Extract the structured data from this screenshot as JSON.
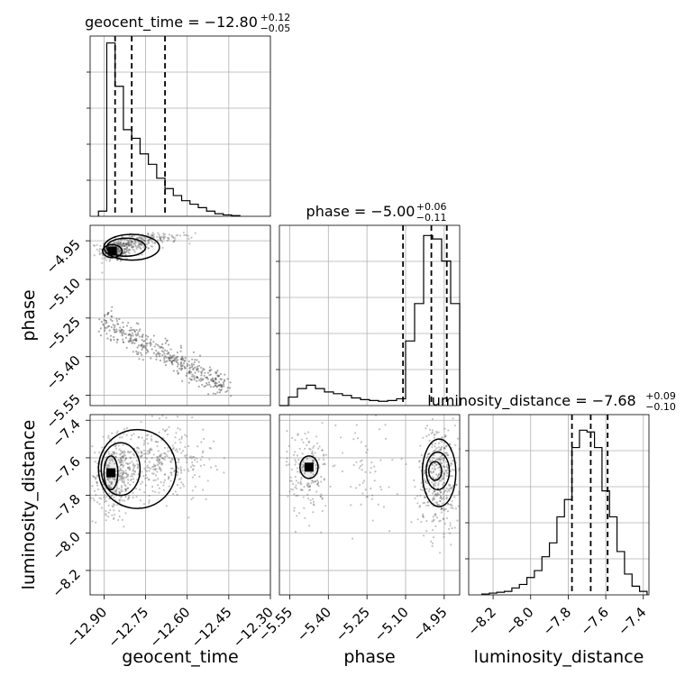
{
  "chart_data": {
    "type": "corner",
    "parameters": [
      "geocent_time",
      "phase",
      "luminosity_distance"
    ],
    "grid": true,
    "diagonal": [
      {
        "parameter": "geocent_time",
        "title": "geocent_time = −12.80",
        "err_plus": "+0.12",
        "err_minus": "−0.05",
        "xlim": [
          -12.95,
          -12.3
        ],
        "quantiles": [
          -12.86,
          -12.8,
          -12.68
        ],
        "bin_width": 0.03,
        "bin_starts": [
          -12.92,
          -12.89,
          -12.86,
          -12.83,
          -12.8,
          -12.77,
          -12.74,
          -12.71,
          -12.68,
          -12.65,
          -12.62,
          -12.59,
          -12.56,
          -12.53,
          -12.5,
          -12.47,
          -12.44
        ],
        "counts": [
          0.03,
          1.0,
          0.75,
          0.5,
          0.45,
          0.36,
          0.3,
          0.22,
          0.16,
          0.12,
          0.09,
          0.07,
          0.05,
          0.03,
          0.015,
          0.008,
          0.004
        ],
        "ylim": [
          0,
          1.04
        ]
      },
      {
        "parameter": "phase",
        "title": "phase = −5.00",
        "err_plus": "+0.06",
        "err_minus": "−0.11",
        "xlim": [
          -5.59,
          -4.89
        ],
        "quantiles": [
          -5.11,
          -5.0,
          -4.94
        ],
        "bin_width": 0.035,
        "bin_starts": [
          -5.59,
          -5.555,
          -5.52,
          -5.485,
          -5.45,
          -5.415,
          -5.38,
          -5.345,
          -5.31,
          -5.275,
          -5.24,
          -5.205,
          -5.17,
          -5.135,
          -5.1,
          -5.065,
          -5.03,
          -4.995,
          -4.96,
          -4.925
        ],
        "counts": [
          0.0,
          0.05,
          0.1,
          0.12,
          0.1,
          0.08,
          0.07,
          0.06,
          0.045,
          0.035,
          0.03,
          0.025,
          0.03,
          0.04,
          0.38,
          0.6,
          1.0,
          0.98,
          0.85,
          0.6
        ],
        "ylim": [
          0,
          1.06
        ]
      },
      {
        "parameter": "luminosity_distance",
        "title": "luminosity_distance = −7.68",
        "err_plus": "+0.09",
        "err_minus": "−0.10",
        "xlim": [
          -8.33,
          -7.37
        ],
        "quantiles": [
          -7.78,
          -7.68,
          -7.59
        ],
        "bin_width": 0.04,
        "bin_starts": [
          -8.26,
          -8.22,
          -8.18,
          -8.14,
          -8.1,
          -8.06,
          -8.02,
          -7.98,
          -7.94,
          -7.9,
          -7.86,
          -7.82,
          -7.78,
          -7.74,
          -7.7,
          -7.66,
          -7.62,
          -7.58,
          -7.54,
          -7.5,
          -7.46,
          -7.42
        ],
        "counts": [
          0.005,
          0.01,
          0.015,
          0.02,
          0.04,
          0.06,
          0.1,
          0.14,
          0.22,
          0.3,
          0.45,
          0.55,
          0.85,
          0.95,
          0.94,
          0.85,
          0.6,
          0.45,
          0.25,
          0.12,
          0.05,
          0.02
        ],
        "ylim": [
          0,
          1.04
        ]
      }
    ],
    "ticks": {
      "geocent_time": [
        "−12.90",
        "−12.75",
        "−12.60",
        "−12.45",
        "−12.30"
      ],
      "phase": [
        "−5.55",
        "−5.40",
        "−5.25",
        "−5.10",
        "−4.95"
      ],
      "luminosity_distance": [
        "−8.2",
        "−8.0",
        "−7.8",
        "−7.6",
        "−7.4"
      ]
    },
    "tick_values": {
      "geocent_time": [
        -12.9,
        -12.75,
        -12.6,
        -12.45,
        -12.3
      ],
      "phase": [
        -5.55,
        -5.4,
        -5.25,
        -5.1,
        -4.95
      ],
      "luminosity_distance": [
        -8.2,
        -8.0,
        -7.8,
        -7.6,
        -7.4
      ]
    },
    "pairs": [
      {
        "x": "geocent_time",
        "y": "phase",
        "xlim": [
          -12.95,
          -12.3
        ],
        "ylim": [
          -5.59,
          -4.89
        ],
        "clusters": [
          {
            "center": [
              -12.86,
              -4.99
            ],
            "spread": [
              0.03,
              0.02
            ],
            "n": 260
          },
          {
            "center": [
              -12.8,
              -4.96
            ],
            "spread": [
              0.04,
              0.015
            ],
            "n": 160
          },
          {
            "center": [
              -12.7,
              -4.94
            ],
            "spread": [
              0.06,
              0.01
            ],
            "n": 90
          }
        ],
        "band": {
          "from": [
            -12.9,
            -5.26
          ],
          "to": [
            -12.45,
            -5.53
          ],
          "width": 0.025,
          "n": 420
        },
        "contours": [
          {
            "center": [
              -12.87,
              -4.99
            ],
            "radii": [
              0.035,
              0.025
            ]
          },
          {
            "center": [
              -12.82,
              -4.975
            ],
            "radii": [
              0.07,
              0.035
            ]
          },
          {
            "center": [
              -12.8,
              -4.975
            ],
            "radii": [
              0.1,
              0.05
            ]
          }
        ]
      },
      {
        "x": "geocent_time",
        "y": "luminosity_distance",
        "xlim": [
          -12.95,
          -12.3
        ],
        "ylim": [
          -8.33,
          -7.37
        ],
        "clusters": [
          {
            "center": [
              -12.86,
              -7.7
            ],
            "spread": [
              0.04,
              0.1
            ],
            "n": 340
          },
          {
            "center": [
              -12.74,
              -7.63
            ],
            "spread": [
              0.07,
              0.1
            ],
            "n": 260
          },
          {
            "center": [
              -12.62,
              -7.6
            ],
            "spread": [
              0.06,
              0.09
            ],
            "n": 110
          }
        ],
        "contours": [
          {
            "center": [
              -12.875,
              -7.68
            ],
            "radii": [
              0.025,
              0.09
            ]
          },
          {
            "center": [
              -12.84,
              -7.66
            ],
            "radii": [
              0.07,
              0.14
            ]
          },
          {
            "center": [
              -12.78,
              -7.66
            ],
            "radii": [
              0.14,
              0.21
            ]
          }
        ]
      },
      {
        "x": "phase",
        "y": "luminosity_distance",
        "xlim": [
          -5.59,
          -4.89
        ],
        "ylim": [
          -8.33,
          -7.37
        ],
        "clusters": [
          {
            "center": [
              -5.48,
              -7.68
            ],
            "spread": [
              0.04,
              0.12
            ],
            "n": 180
          },
          {
            "center": [
              -4.97,
              -7.7
            ],
            "spread": [
              0.04,
              0.14
            ],
            "n": 420
          },
          {
            "center": [
              -5.25,
              -7.7
            ],
            "spread": [
              0.08,
              0.18
            ],
            "n": 60
          }
        ],
        "contours": [
          {
            "center": [
              -5.475,
              -7.65
            ],
            "radii": [
              0.035,
              0.06
            ]
          },
          {
            "center": [
              -4.985,
              -7.67
            ],
            "radii": [
              0.025,
              0.05
            ]
          },
          {
            "center": [
              -4.975,
              -7.67
            ],
            "radii": [
              0.045,
              0.1
            ]
          },
          {
            "center": [
              -4.97,
              -7.68
            ],
            "radii": [
              0.065,
              0.18
            ]
          }
        ]
      }
    ]
  }
}
